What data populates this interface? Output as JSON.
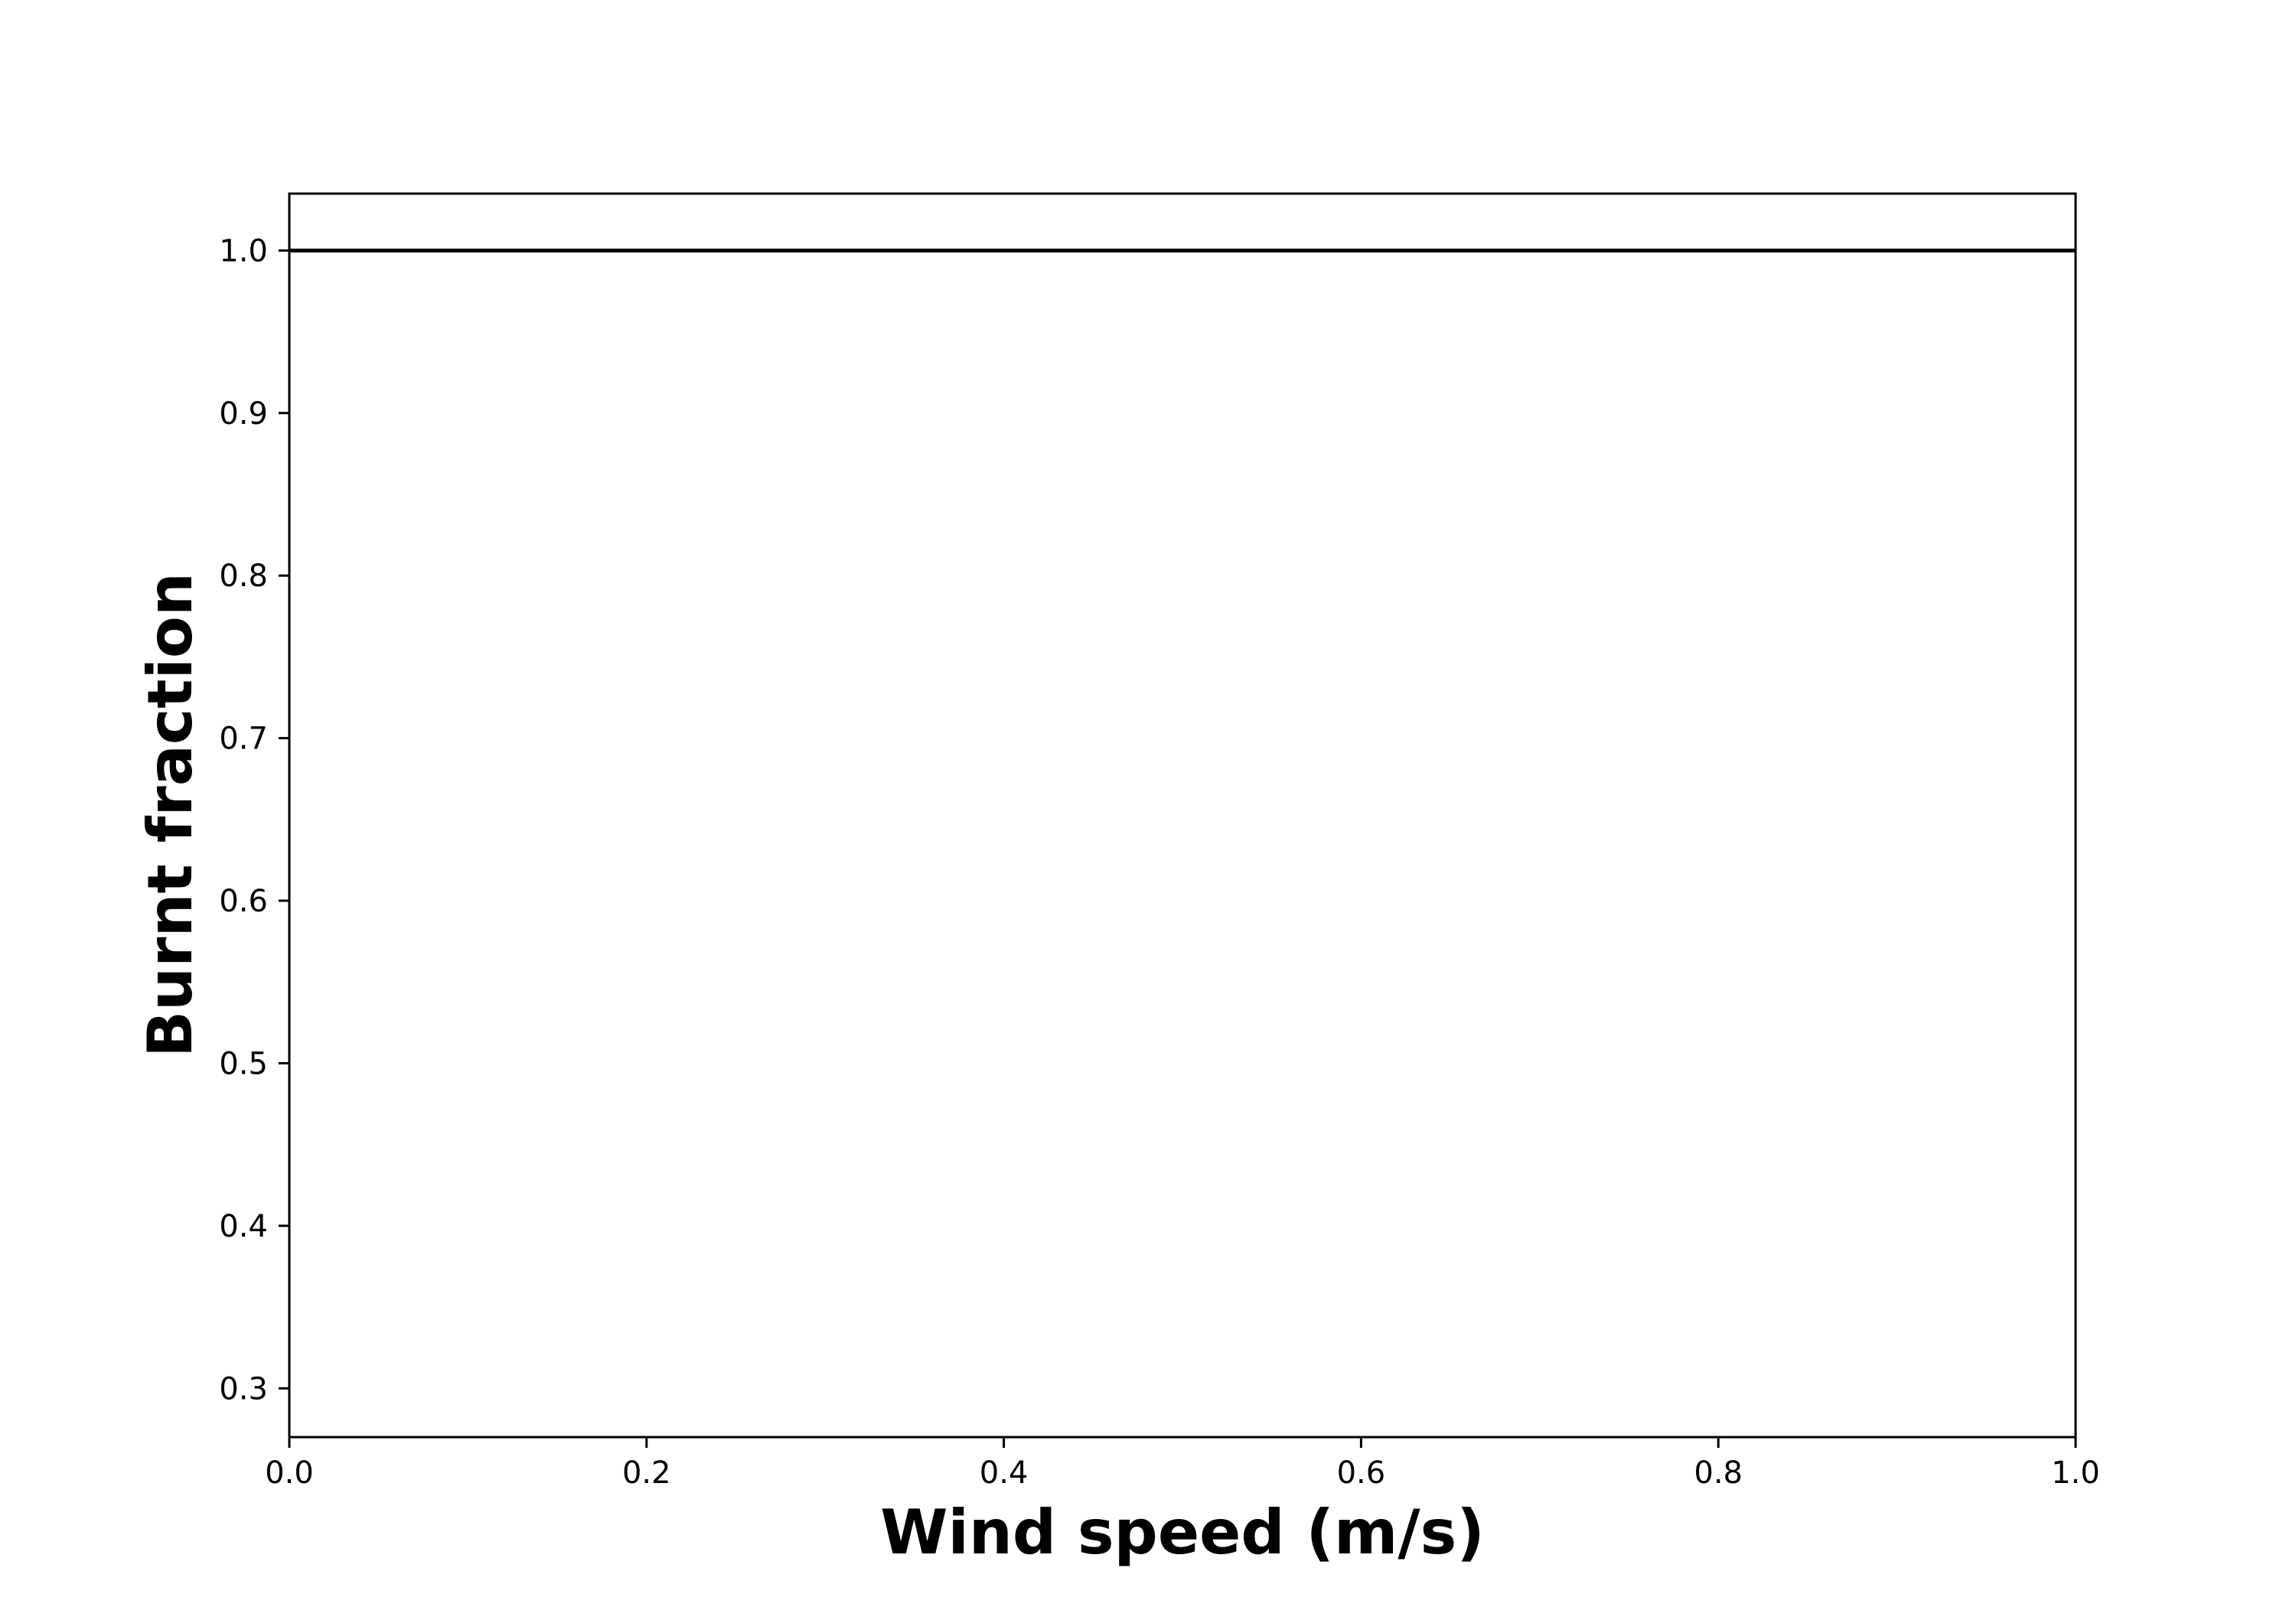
{
  "chart_data": {
    "type": "line",
    "title": "",
    "xlabel": "Wind speed (m/s)",
    "ylabel": "Burnt fraction",
    "xlim": [
      0.0,
      1.0
    ],
    "ylim": [
      0.27,
      1.035
    ],
    "xticks": [
      0.0,
      0.2,
      0.4,
      0.6,
      0.8,
      1.0
    ],
    "xtick_labels": [
      "0.0",
      "0.2",
      "0.4",
      "0.6",
      "0.8",
      "1.0"
    ],
    "yticks": [
      0.3,
      0.4,
      0.5,
      0.6,
      0.7,
      0.8,
      0.9,
      1.0
    ],
    "ytick_labels": [
      "0.3",
      "0.4",
      "0.5",
      "0.6",
      "0.7",
      "0.8",
      "0.9",
      "1.0"
    ],
    "grid": false,
    "series": [
      {
        "x": [
          0.0,
          1.0
        ],
        "y": [
          1.0,
          1.0
        ],
        "color": "#000000"
      }
    ]
  }
}
